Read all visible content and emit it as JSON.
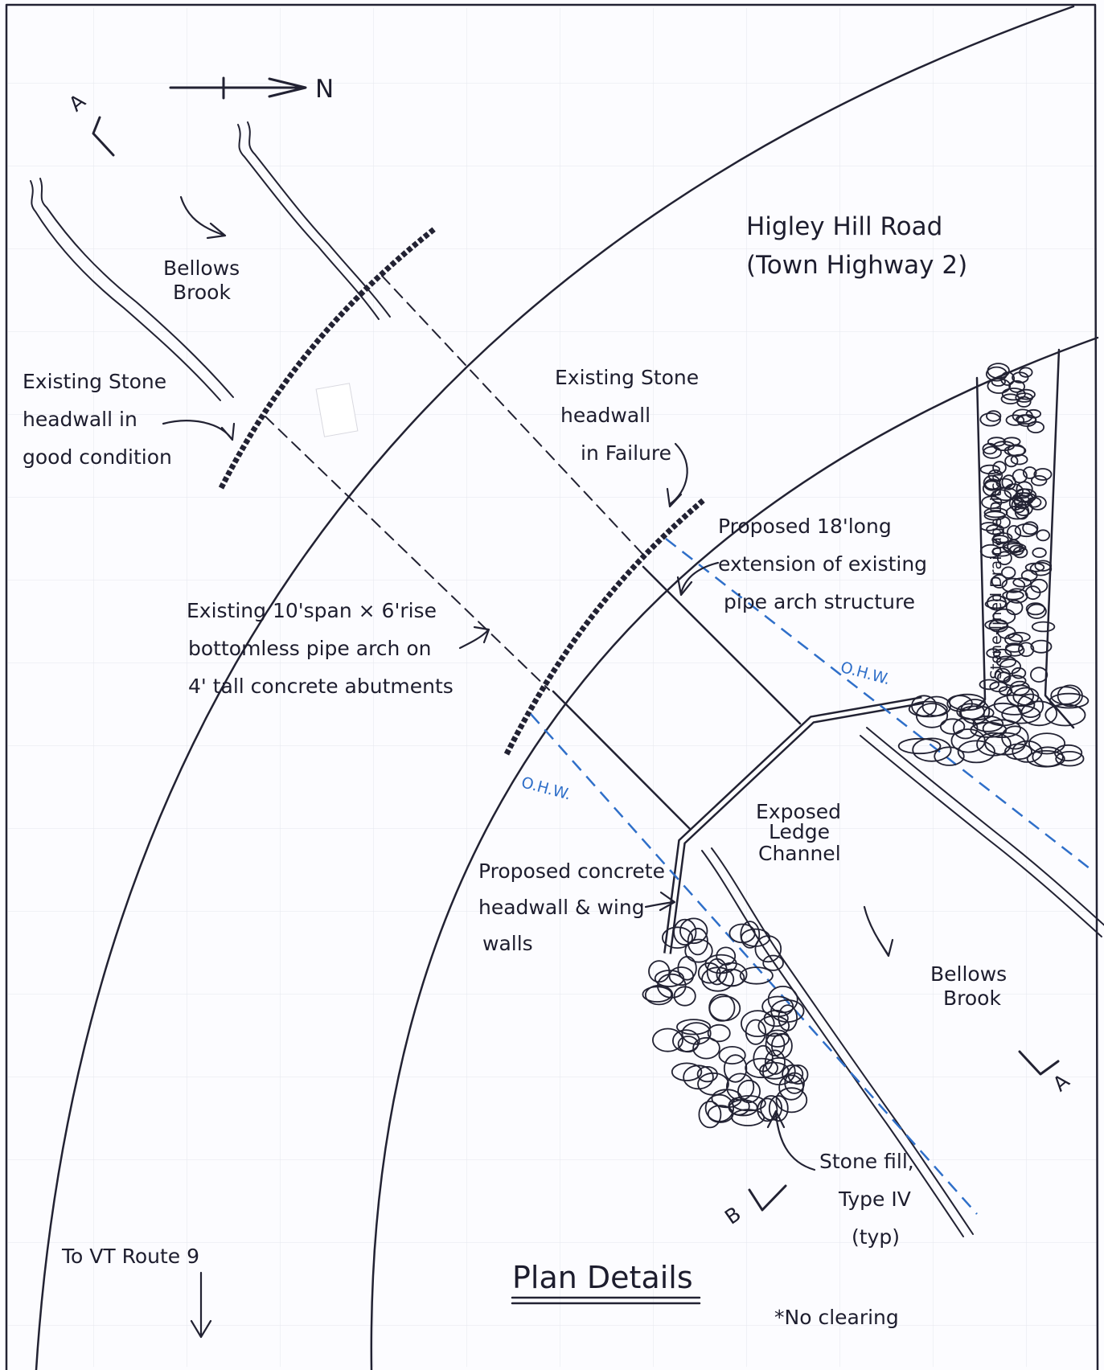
{
  "diagram": {
    "title": "Plan Details",
    "north_label": "N",
    "section_a": "A",
    "section_b": "B",
    "road_label": [
      "Higley Hill Road",
      "(Town Highway 2)"
    ],
    "brook_upstream": [
      "Bellows",
      "Brook"
    ],
    "brook_downstream": [
      "Bellows",
      "Brook"
    ],
    "headwall_good": [
      "Existing Stone",
      "headwall in",
      "good condition"
    ],
    "headwall_failure": [
      "Existing Stone",
      "headwall",
      "in Failure"
    ],
    "extension": [
      "Proposed 18'long",
      "extension of existing",
      "pipe arch structure"
    ],
    "pipe_arch": [
      "Existing 10'span × 6'rise",
      "bottomless pipe arch on",
      "4' tall concrete abutments"
    ],
    "ohw": "O.H.W.",
    "ledge": [
      "Exposed",
      "Ledge",
      "Channel"
    ],
    "concrete_headwall": [
      "Proposed concrete",
      "headwall & wing",
      "walls"
    ],
    "ditch": "Stone-lined Drainage Ditch",
    "stone_fill": [
      "Stone fill,",
      "Type IV",
      "(typ)"
    ],
    "route": "To VT Route 9",
    "note": "*No clearing",
    "colors": {
      "ink": "#222233",
      "ohw_blue": "#2f6fc9",
      "grid": "#e4e6ee"
    }
  }
}
